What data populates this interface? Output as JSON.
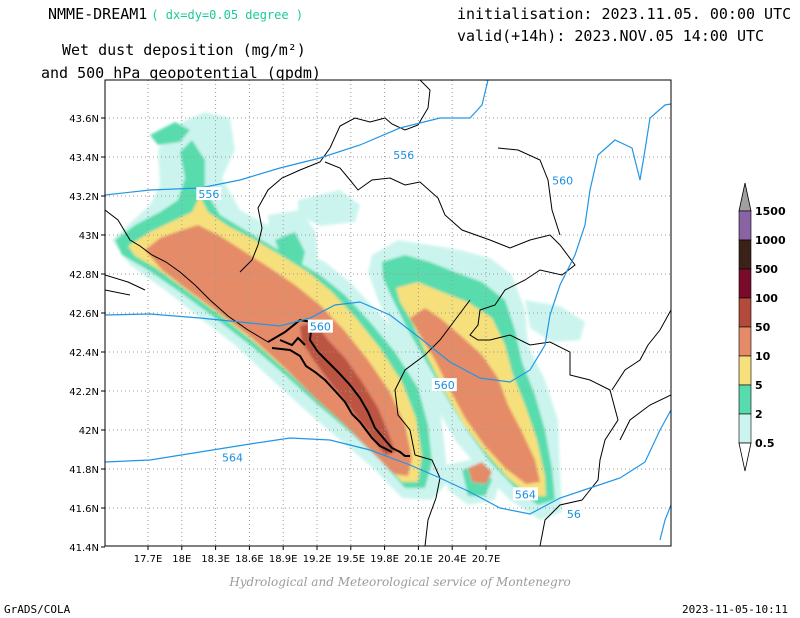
{
  "header": {
    "model": "NMME-DREAM1",
    "resolution": "( dx=dy=0.05 degree )",
    "init": "initialisation: 2023.11.05. 00:00 UTC",
    "valid": "valid(+14h): 2023.NOV.05 14:00 UTC",
    "variable_line1": "Wet dust deposition (mg/m²)",
    "variable_line2": "and 500 hPa geopotential (gpdm)"
  },
  "map": {
    "lon_ticks": [
      "17.7E",
      "18E",
      "18.3E",
      "18.6E",
      "18.9E",
      "19.2E",
      "19.5E",
      "19.8E",
      "20.1E",
      "20.4E",
      "20.7E"
    ],
    "lat_ticks": [
      "43.6N",
      "43.4N",
      "43.2N",
      "43N",
      "42.8N",
      "42.6N",
      "42.4N",
      "42.2N",
      "42N",
      "41.8N",
      "41.6N",
      "41.4N"
    ],
    "contour_labels": [
      {
        "text": "556",
        "lon": 19.97,
        "lat": 43.41
      },
      {
        "text": "556",
        "lon": 18.24,
        "lat": 43.21
      },
      {
        "text": "560",
        "lon": 21.38,
        "lat": 43.28
      },
      {
        "text": "560",
        "lon": 19.23,
        "lat": 42.53
      },
      {
        "text": "560",
        "lon": 20.33,
        "lat": 42.23
      },
      {
        "text": "564",
        "lon": 18.45,
        "lat": 41.86
      },
      {
        "text": "564",
        "lon": 21.05,
        "lat": 41.67
      },
      {
        "text": "56",
        "lon": 21.48,
        "lat": 41.57
      }
    ]
  },
  "legend": {
    "levels": [
      {
        "label": "1500",
        "color": "#a0a0a0"
      },
      {
        "label": "1000",
        "color": "#8a63a4"
      },
      {
        "label": "500",
        "color": "#3a2218"
      },
      {
        "label": "100",
        "color": "#7a0a2a"
      },
      {
        "label": "50",
        "color": "#b44a3c"
      },
      {
        "label": "10",
        "color": "#e58b68"
      },
      {
        "label": "5",
        "color": "#f6e07c"
      },
      {
        "label": "2",
        "color": "#58dcae"
      },
      {
        "label": "0.5",
        "color": "#ccf4ee"
      }
    ]
  },
  "colors": {
    "contour": "#2196e6",
    "contour_label": "#1a8fe0",
    "border": "#000000",
    "grid": "#9a9a9a"
  },
  "footer": {
    "credit": "Hydrological and Meteorological service of Montenegro",
    "software": "GrADS/COLA",
    "timestamp": "2023-11-05-10:11"
  }
}
